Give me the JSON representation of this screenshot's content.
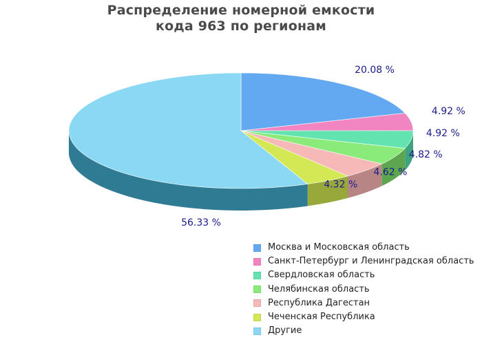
{
  "chart_data": {
    "type": "pie",
    "style": "3d",
    "title": [
      "Распределение номерной емкости",
      "кода 963 по регионам"
    ],
    "slices": [
      {
        "name": "Москва и Московская область",
        "value": 20.08,
        "label": "20.08 %",
        "color": "#62a9f2",
        "side_color": "#3f7fb3"
      },
      {
        "name": "Санкт-Петербург и Ленинградская область",
        "value": 4.92,
        "label": "4.92 %",
        "color": "#f185c1",
        "side_color": "#b8608f"
      },
      {
        "name": "Свердловская область",
        "value": 4.92,
        "label": "4.92 %",
        "color": "#62e3b0",
        "side_color": "#3ea37e"
      },
      {
        "name": "Челябинская область",
        "value": 4.82,
        "label": "4.82 %",
        "color": "#8beb7a",
        "side_color": "#5da64f"
      },
      {
        "name": "Республика Дагестан",
        "value": 4.62,
        "label": "4.62 %",
        "color": "#f7b8b8",
        "side_color": "#b88585"
      },
      {
        "name": "Чеченская Республика",
        "value": 4.32,
        "label": "4.32 %",
        "color": "#d4e856",
        "side_color": "#98a83a"
      },
      {
        "name": "Другие",
        "value": 56.33,
        "label": "56.33 %",
        "color": "#8ad8f4",
        "side_color": "#2e7b93"
      }
    ],
    "legend_position": "bottom-right"
  }
}
